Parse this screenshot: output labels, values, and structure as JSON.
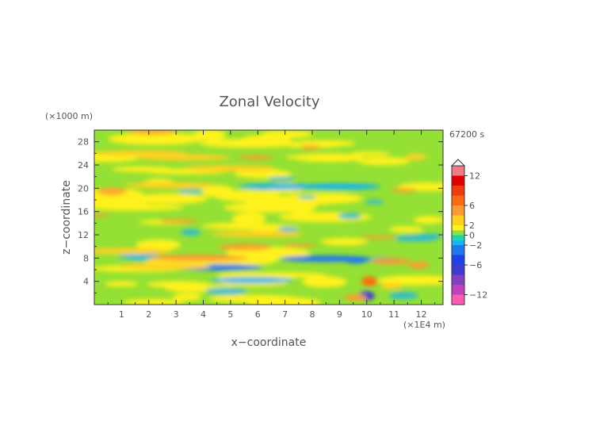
{
  "chart_data": {
    "type": "heatmap",
    "title": "Zonal Velocity",
    "xlabel": "x−coordinate",
    "ylabel": "z−coordinate",
    "x_unit": "(×1E4 m)",
    "y_unit": "(×1000 m)",
    "time_label": "67200 s",
    "xlim": [
      0,
      12.8
    ],
    "ylim": [
      0,
      30
    ],
    "x_ticks": [
      "1",
      "2",
      "3",
      "4",
      "5",
      "6",
      "7",
      "8",
      "9",
      "10",
      "11",
      "12"
    ],
    "y_ticks": [
      "4",
      "8",
      "12",
      "16",
      "20",
      "24",
      "28"
    ],
    "colorbar": {
      "tick_labels": [
        "12",
        "6",
        "2",
        "0",
        "−2",
        "−6",
        "−12"
      ],
      "tick_values": [
        12,
        6,
        2,
        0,
        -2,
        -6,
        -12
      ],
      "levels": [
        -14,
        -12,
        -10,
        -8,
        -6,
        -4,
        -2,
        -1,
        0,
        1,
        2,
        4,
        6,
        8,
        10,
        12,
        14
      ],
      "colors": [
        "#ff5ab4",
        "#c040c0",
        "#8040c0",
        "#3c3cd0",
        "#2040e8",
        "#1e78f0",
        "#19b4f0",
        "#10d8b8",
        "#94e034",
        "#fff21a",
        "#ffd020",
        "#ff9a30",
        "#ff6a10",
        "#f03a10",
        "#e00000",
        "#f07a88",
        "#ffb2b2"
      ]
    },
    "features": [
      {
        "x": 3.8,
        "z": 8.0,
        "value": 4
      },
      {
        "x": 4.5,
        "z": 6.4,
        "value": -3
      },
      {
        "x": 2.6,
        "z": 6.6,
        "value": 3
      },
      {
        "x": 5.8,
        "z": 4.2,
        "value": -2
      },
      {
        "x": 5.0,
        "z": 23.4,
        "value": 3
      },
      {
        "x": 1.7,
        "z": 26.0,
        "value": 3
      },
      {
        "x": 3.3,
        "z": 25.3,
        "value": 3
      },
      {
        "x": 6.8,
        "z": 20.3,
        "value": -2
      },
      {
        "x": 11.8,
        "z": 25.4,
        "value": 3
      },
      {
        "x": 2.8,
        "z": 20.5,
        "value": 3
      },
      {
        "x": 10.0,
        "z": 1.5,
        "value": -8
      },
      {
        "x": 10.1,
        "z": 4.0,
        "value": 6
      },
      {
        "x": 9.6,
        "z": 1.2,
        "value": 5
      },
      {
        "x": 8.5,
        "z": 7.9,
        "value": -3
      },
      {
        "x": 9.6,
        "z": 7.6,
        "value": -3
      },
      {
        "x": 11.9,
        "z": 6.8,
        "value": 4
      },
      {
        "x": 10.9,
        "z": 3.2,
        "value": 3
      },
      {
        "x": 1.2,
        "z": 9.2,
        "value": 3
      },
      {
        "x": 9.0,
        "z": 20.3,
        "value": -2
      },
      {
        "x": 6.0,
        "z": 12.1,
        "value": 3
      }
    ]
  }
}
